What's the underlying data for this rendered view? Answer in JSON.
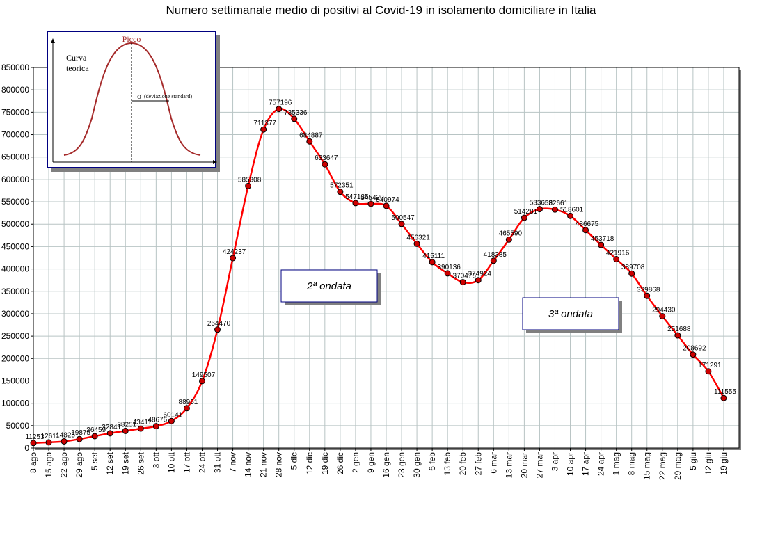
{
  "chart_data": {
    "type": "line",
    "title": "Numero settimanale medio di positivi al Covid-19  in isolamento domiciliare in Italia",
    "xlabel": "",
    "ylabel": "",
    "ylim": [
      0,
      850000
    ],
    "ytick_step": 50000,
    "grid": true,
    "series_color": "#ff0000",
    "marker_color": "#cc0000",
    "categories": [
      "8 ago",
      "15 ago",
      "22 ago",
      "29 ago",
      "5 set",
      "12 set",
      "19 set",
      "26 set",
      "3 ott",
      "10 ott",
      "17 ott",
      "24 ott",
      "31 ott",
      "7 nov",
      "14 nov",
      "21 nov",
      "28 nov",
      "5 dic",
      "12 dic",
      "19 dic",
      "26 dic",
      "2 gen",
      "9 gen",
      "16 gen",
      "23 gen",
      "30 gen",
      "6 feb",
      "13 feb",
      "20 feb",
      "27 feb",
      "6 mar",
      "13 mar",
      "20 mar",
      "27 mar",
      "3 apr",
      "10 apr",
      "17 apr",
      "24 apr",
      "1 mag",
      "8 mag",
      "15 mag",
      "22 mag",
      "29 mag",
      "5 giu",
      "12 giu",
      "19 giu"
    ],
    "values": [
      11253,
      12611,
      14825,
      19875,
      26459,
      32841,
      38251,
      43411,
      48676,
      60141,
      88951,
      149507,
      264470,
      424237,
      585308,
      711377,
      757196,
      735336,
      684887,
      633647,
      572351,
      547135,
      545420,
      540974,
      500547,
      456321,
      415111,
      390136,
      370476,
      374924,
      418385,
      465590,
      514281,
      533658,
      532661,
      518601,
      486675,
      453718,
      421916,
      389708,
      339868,
      294430,
      251688,
      208692,
      171291,
      111555
    ],
    "annotations": [
      "2ª ondata",
      "3ª ondata"
    ]
  },
  "inset": {
    "peak_label": "Picco",
    "curve_label_line1": "Curva",
    "curve_label_line2": "teorica",
    "sigma_symbol": "σ",
    "sigma_label": "(deviazione standard)"
  }
}
